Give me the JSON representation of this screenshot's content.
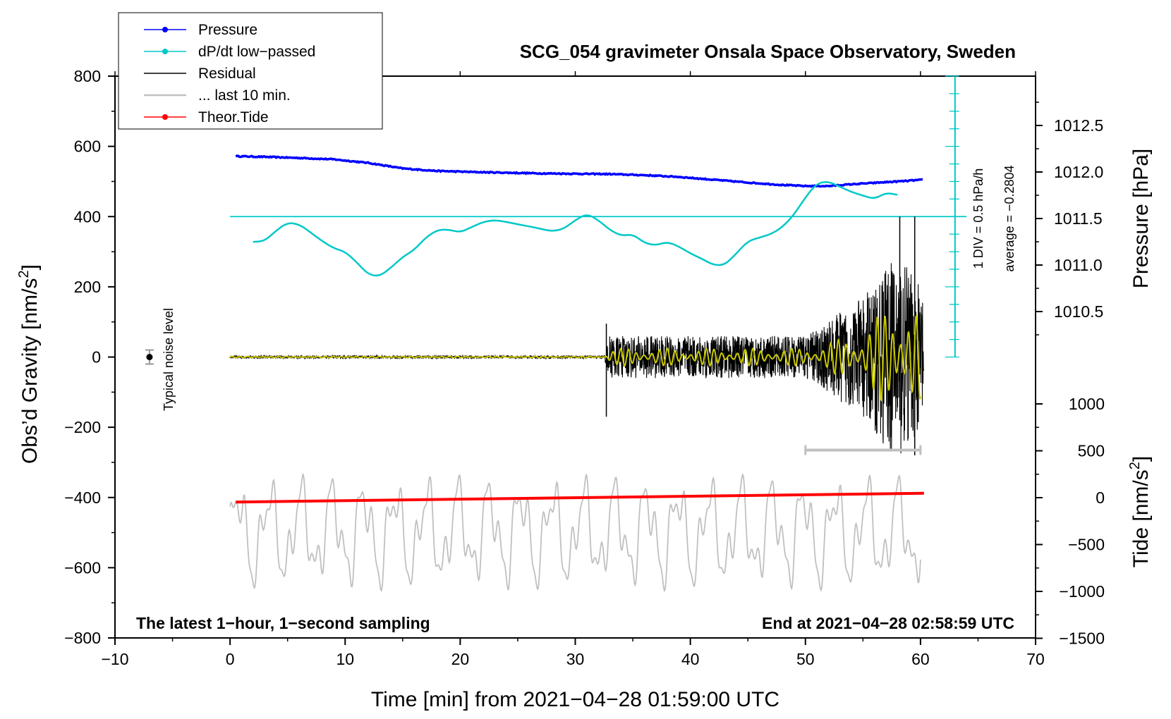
{
  "chart_data": {
    "type": "line",
    "title": "SCG_054 gravimeter Onsala Space Observatory, Sweden",
    "xlabel": "Time [min] from 2021−04−28 01:59:00 UTC",
    "ylabel": "Obs’d Gravity [nm/s²]",
    "ylabel_main": "Obs’d Gravity [nm/s",
    "ylabel_sup": "2",
    "ylabel_end": "]",
    "y2label": "Pressure [hPa]",
    "y3label": "Tide [nm/s²]",
    "y3label_main": "Tide [nm/s",
    "y3label_sup": "2",
    "y3label_end": "]",
    "xlim": [
      -10,
      70
    ],
    "ylim": [
      -800,
      800
    ],
    "x_ticks": [
      -10,
      0,
      10,
      20,
      30,
      40,
      50,
      60,
      70
    ],
    "x_tick_labels": [
      "−10",
      "0",
      "10",
      "20",
      "30",
      "40",
      "50",
      "60",
      "70"
    ],
    "y_ticks": [
      800,
      600,
      400,
      200,
      0,
      -200,
      -400,
      -600,
      -800
    ],
    "y_tick_labels": [
      "800",
      "600",
      "400",
      "200",
      "0",
      "−200",
      "−400",
      "−600",
      "−800"
    ],
    "pressure_ticks": [
      1012.5,
      1012.0,
      1011.5,
      1011.0,
      1010.5
    ],
    "pressure_tick_labels": [
      "1012.5",
      "1012.0",
      "1011.5",
      "1011.0",
      "1010.5"
    ],
    "tide_ticks": [
      1000,
      500,
      0,
      -500,
      -1000,
      -1500
    ],
    "tide_tick_labels": [
      "1000",
      "500",
      "0",
      "−500",
      "−1000",
      "−1500"
    ],
    "legend": {
      "placement": "top-left",
      "entries": [
        {
          "label": "Pressure",
          "color": "#0000ff",
          "marker": true
        },
        {
          "label": "dP/dt low−passed",
          "color": "#00c8c8",
          "marker": true
        },
        {
          "label": "Residual",
          "color": "#000000",
          "marker": false
        },
        {
          "label": "... last 10 min.",
          "color": "#c0c0c0",
          "marker": false
        },
        {
          "label": "Theor.Tide",
          "color": "#ff0000",
          "marker": true
        }
      ]
    },
    "annotations": {
      "scale_div": "1 DIV = 0.5 hPa/h",
      "scale_avg": "average = −0.2804",
      "noise_label": "Typical noise level",
      "bottom_left": "The latest 1−hour, 1−second sampling",
      "bottom_right": "End at 2021−04−28 02:58:59 UTC"
    },
    "noise_bar": {
      "x": -7,
      "y": 0,
      "error": 20
    },
    "scale_bar": {
      "x": 63,
      "y_top": 800,
      "y_bottom": 0
    },
    "last10_bar": {
      "x_start": 50,
      "x_end": 60,
      "y": -265
    },
    "series": [
      {
        "name": "Pressure",
        "color": "#0000ff",
        "x": [
          0.5,
          3,
          6,
          9,
          12,
          15,
          18,
          21,
          24,
          27,
          30,
          33,
          36,
          39,
          42,
          45,
          48,
          50,
          52,
          54,
          56,
          58,
          60.3
        ],
        "values": [
          572,
          570,
          567,
          563,
          553,
          537,
          530,
          527,
          525,
          523,
          522,
          521,
          518,
          513,
          505,
          497,
          490,
          487,
          487,
          492,
          496,
          500,
          505
        ]
      },
      {
        "name": "dP/dt low-passed",
        "color": "#00c8c8",
        "x": [
          2,
          3,
          4,
          5,
          6,
          7,
          8,
          9,
          10,
          11,
          12,
          13,
          14,
          15,
          16,
          17,
          18,
          19,
          20,
          21,
          22,
          23,
          24,
          25,
          26,
          27,
          28,
          29,
          30,
          31,
          32,
          33,
          34,
          35,
          36,
          37,
          38,
          39,
          40,
          41,
          42,
          43,
          44,
          45,
          46,
          47,
          48,
          49,
          50,
          51,
          52,
          53,
          54,
          55,
          56,
          57,
          58
        ],
        "values": [
          328,
          330,
          360,
          383,
          378,
          355,
          330,
          310,
          300,
          270,
          235,
          230,
          255,
          285,
          305,
          340,
          362,
          363,
          355,
          370,
          385,
          390,
          385,
          378,
          372,
          365,
          358,
          365,
          390,
          408,
          390,
          362,
          345,
          350,
          325,
          318,
          328,
          315,
          295,
          280,
          262,
          262,
          295,
          330,
          340,
          350,
          370,
          405,
          455,
          495,
          500,
          485,
          470,
          460,
          450,
          468,
          462
        ]
      },
      {
        "name": "Residual",
        "color": "#000000",
        "x": [
          0,
          32.5,
          33,
          50,
          55,
          58,
          60
        ],
        "amplitude": [
          4,
          4,
          60,
          60,
          170,
          300,
          200
        ],
        "spikes": [
          {
            "x": 32.7,
            "values": [
              95,
              -170
            ]
          },
          {
            "x": 58.2,
            "values": [
              400,
              -180
            ]
          },
          {
            "x": 59.5,
            "values": [
              400,
              -280
            ]
          }
        ]
      },
      {
        "name": "Residual (filtered)",
        "color": "#c8c800",
        "x": [
          0,
          32.5,
          33,
          50,
          55,
          58,
          60
        ],
        "amplitude": [
          2,
          2,
          25,
          25,
          70,
          180,
          120
        ]
      },
      {
        "name": "... last 10 min.",
        "color": "#c0c0c0",
        "y_range": [
          -690,
          -310
        ]
      },
      {
        "name": "Theor.Tide",
        "color": "#ff0000",
        "x": [
          0.5,
          60.3
        ],
        "values": [
          -413,
          -388
        ]
      }
    ]
  }
}
